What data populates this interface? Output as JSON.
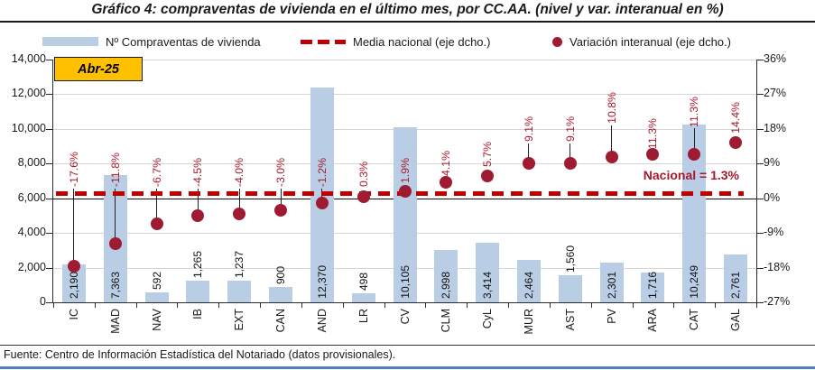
{
  "title": "Gráfico 4: compraventas de vivienda en el último mes, por CC.AA. (nivel y var. interanual en %)",
  "period_badge": "Abr-25",
  "legend": [
    {
      "label": "Nº Compraventas de vivienda",
      "marker": "bar-swatch",
      "color": "#B9CDE4"
    },
    {
      "label": "Media nacional (eje dcho.)",
      "marker": "dashed-line",
      "color": "#C00000"
    },
    {
      "label": "Variación interanual (eje dcho.)",
      "marker": "dot",
      "color": "#9E1B32"
    }
  ],
  "national_label": "Nacional = 1.3%",
  "footer": "Fuente: Centro de Información Estadística del Notariado (datos provisionales).",
  "colors": {
    "bar": "#B9CDE4",
    "dot": "#9E1B32",
    "dash_line": "#C00000",
    "variation_label": "#A6192E",
    "badge_fill": "#FFC000",
    "bottom_border": "#4F81BD",
    "gridline": "#D6D6D6"
  },
  "chart_data": {
    "type": "bar",
    "subtype": "bar + scatter dual-axis",
    "categories": [
      "IC",
      "MAD",
      "NAV",
      "IB",
      "EXT",
      "CAN",
      "AND",
      "LR",
      "CV",
      "CLM",
      "CyL",
      "MUR",
      "AST",
      "PV",
      "ARA",
      "CAT",
      "GAL"
    ],
    "series": [
      {
        "name": "Nº Compraventas de vivienda",
        "type": "bar",
        "axis": "left",
        "values": [
          2190,
          7363,
          592,
          1265,
          1237,
          900,
          12370,
          498,
          10105,
          2998,
          3414,
          2464,
          1560,
          2301,
          1716,
          10249,
          2761
        ],
        "labels": [
          "2,190",
          "7,363",
          "592",
          "1,265",
          "1,237",
          "900",
          "12,370",
          "498",
          "10,105",
          "2,998",
          "3,414",
          "2,464",
          "1,560",
          "2,301",
          "1,716",
          "10,249",
          "2,761"
        ]
      },
      {
        "name": "Variación interanual (eje dcho.)",
        "type": "scatter",
        "axis": "right",
        "values": [
          -17.6,
          -11.8,
          -6.7,
          -4.5,
          -4.0,
          -3.0,
          -1.2,
          0.3,
          1.9,
          4.1,
          5.7,
          9.1,
          9.1,
          10.8,
          11.3,
          11.3,
          14.4
        ],
        "labels": [
          "-17.6%",
          "-11.8%",
          "-6.7%",
          "-4.5%",
          "-4.0%",
          "-3.0%",
          "-1.2%",
          "0.3%",
          "1.9%",
          "4.1%",
          "5.7%",
          "9.1%",
          "9.1%",
          "10.8%",
          "11.3%",
          "11.3%",
          "14.4%"
        ]
      },
      {
        "name": "Media nacional (eje dcho.)",
        "type": "line-dashed",
        "axis": "right",
        "value": 1.3
      }
    ],
    "left_axis": {
      "min": 0,
      "max": 14000,
      "step": 2000,
      "ticks": [
        "0",
        "2,000",
        "4,000",
        "6,000",
        "8,000",
        "10,000",
        "12,000",
        "14,000"
      ]
    },
    "right_axis": {
      "min": -27,
      "max": 36,
      "step": 9,
      "ticks": [
        "-27%",
        "-18%",
        "-9%",
        "0%",
        "9%",
        "18%",
        "27%",
        "36%"
      ]
    },
    "grid": true,
    "legend_position": "top",
    "annotations": [
      "Abr-25",
      "Nacional = 1.3%"
    ]
  }
}
